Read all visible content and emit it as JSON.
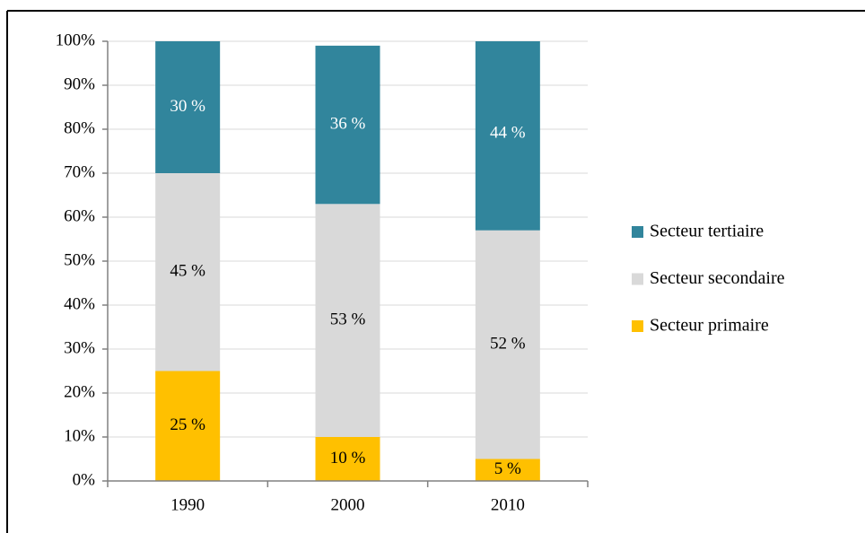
{
  "chart_data": {
    "type": "stacked_bar",
    "categories": [
      "1990",
      "2000",
      "2010"
    ],
    "series": [
      {
        "name": "Secteur primaire",
        "color": "#ffc000",
        "label_color": "#000000",
        "values": [
          25,
          10,
          5
        ],
        "value_labels": [
          "25 %",
          "10 %",
          "5 %"
        ]
      },
      {
        "name": "Secteur secondaire",
        "color": "#d9d9d9",
        "label_color": "#000000",
        "values": [
          45,
          53,
          52
        ],
        "value_labels": [
          "45 %",
          "53 %",
          "52 %"
        ]
      },
      {
        "name": "Secteur tertiaire",
        "color": "#31859c",
        "label_color": "#ffffff",
        "values": [
          30,
          36,
          44
        ],
        "value_labels": [
          "30 %",
          "36 %",
          "44 %"
        ]
      }
    ],
    "ylim": [
      0,
      100
    ],
    "yticks": [
      {
        "value": 0,
        "label": "0%"
      },
      {
        "value": 10,
        "label": "10%"
      },
      {
        "value": 20,
        "label": "20%"
      },
      {
        "value": 30,
        "label": "30%"
      },
      {
        "value": 40,
        "label": "40%"
      },
      {
        "value": 50,
        "label": "50%"
      },
      {
        "value": 60,
        "label": "60%"
      },
      {
        "value": 70,
        "label": "70%"
      },
      {
        "value": 80,
        "label": "80%"
      },
      {
        "value": 90,
        "label": "90%"
      },
      {
        "value": 100,
        "label": "100%"
      }
    ],
    "grid": true,
    "legend": "right"
  }
}
